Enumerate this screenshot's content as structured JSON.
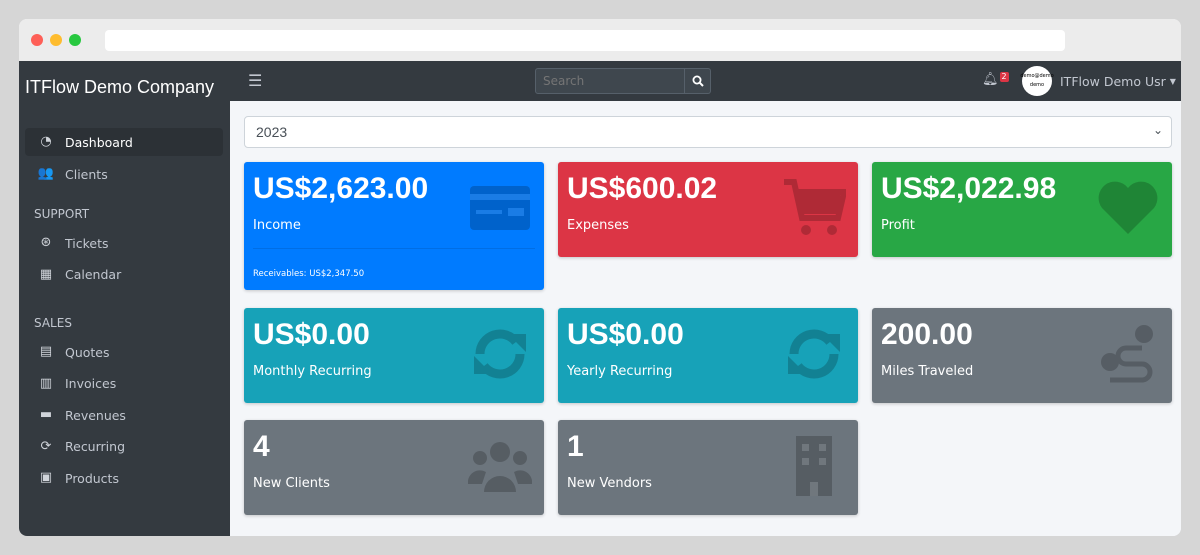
{
  "window": {
    "dots": [
      "#fe5f57",
      "#febc2e",
      "#28c840"
    ]
  },
  "sidebar": {
    "brand": "ITFlow Demo Company",
    "items": [
      {
        "label": "Dashboard",
        "icon": "tachometer-icon",
        "glyph": "◔",
        "active": true
      },
      {
        "label": "Clients",
        "icon": "users-icon",
        "glyph": "👥"
      }
    ],
    "sections": [
      {
        "title": "SUPPORT",
        "items": [
          {
            "label": "Tickets",
            "icon": "life-ring-icon",
            "glyph": "⊛"
          },
          {
            "label": "Calendar",
            "icon": "calendar-icon",
            "glyph": "▦"
          }
        ]
      },
      {
        "title": "SALES",
        "items": [
          {
            "label": "Quotes",
            "icon": "file-icon",
            "glyph": "▤"
          },
          {
            "label": "Invoices",
            "icon": "invoice-icon",
            "glyph": "▥"
          },
          {
            "label": "Revenues",
            "icon": "credit-card-icon",
            "glyph": "▬"
          },
          {
            "label": "Recurring",
            "icon": "sync-icon",
            "glyph": "⟳"
          },
          {
            "label": "Products",
            "icon": "box-icon",
            "glyph": "▣"
          }
        ]
      }
    ]
  },
  "topbar": {
    "search_placeholder": "Search",
    "notification_count": "2",
    "avatar_text": "demo@demo demo",
    "user_name": "ITFlow Demo Usr"
  },
  "filter": {
    "year": "2023"
  },
  "cards": [
    {
      "value": "US$2,623.00",
      "label": "Income",
      "footer": "Receivables: US$2,347.50",
      "color": "#007bff",
      "icon": "credit-card-icon"
    },
    {
      "value": "US$600.02",
      "label": "Expenses",
      "color": "#dc3545",
      "icon": "cart-icon"
    },
    {
      "value": "US$2,022.98",
      "label": "Profit",
      "color": "#28a745",
      "icon": "heart-icon"
    },
    {
      "value": "US$0.00",
      "label": "Monthly Recurring",
      "color": "#17a2b8",
      "icon": "sync-icon"
    },
    {
      "value": "US$0.00",
      "label": "Yearly Recurring",
      "color": "#17a2b8",
      "icon": "sync-icon"
    },
    {
      "value": "200.00",
      "label": "Miles Traveled",
      "color": "#6c757d",
      "icon": "route-icon"
    },
    {
      "value": "4",
      "label": "New Clients",
      "color": "#6c757d",
      "icon": "users-icon"
    },
    {
      "value": "1",
      "label": "New Vendors",
      "color": "#6c757d",
      "icon": "building-icon"
    }
  ]
}
